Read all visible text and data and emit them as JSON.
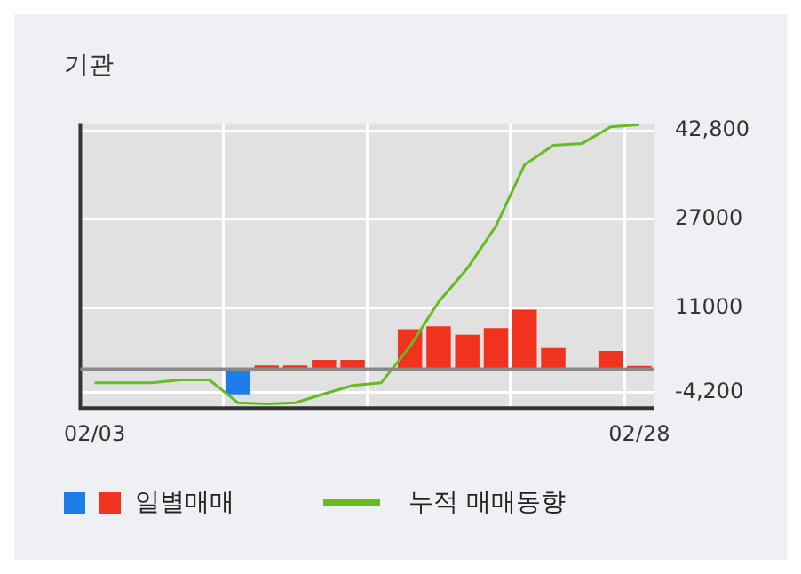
{
  "chart_data": {
    "type": "bar",
    "title": "기관",
    "categories": [
      "02/03",
      null,
      null,
      null,
      null,
      null,
      null,
      null,
      null,
      null,
      null,
      null,
      null,
      null,
      null,
      null,
      null,
      null,
      null,
      "02/28"
    ],
    "series": [
      {
        "name": "일별매매",
        "colors": [
          "#f0321e",
          "#f0321e",
          "#f0321e",
          "#f0321e",
          "#f0321e",
          "#1e7ee8",
          "#f0321e",
          "#f0321e",
          "#f0321e",
          "#f0321e",
          "#f0321e",
          "#f0321e",
          "#f0321e",
          "#f0321e",
          "#f0321e",
          "#f0321e",
          "#f0321e",
          "#f0321e",
          "#f0321e",
          "#f0321e"
        ],
        "values": [
          0,
          0,
          0,
          0,
          0,
          -4500,
          700,
          700,
          1700,
          1700,
          0,
          7200,
          7700,
          6200,
          7400,
          10700,
          3800,
          0,
          3300,
          600
        ]
      },
      {
        "name": "누적 매매동향",
        "type": "line",
        "color": "#66bb22",
        "values": [
          -2400,
          -2400,
          -2400,
          -1900,
          -1900,
          -6000,
          -6200,
          -6000,
          -4400,
          -2900,
          -2400,
          4100,
          12100,
          18100,
          25700,
          36700,
          40200,
          40500,
          43500,
          43900
        ]
      }
    ],
    "ylim": [
      -6950,
      44200
    ],
    "yticks": [
      {
        "value": 42800,
        "label": "42,800"
      },
      27000,
      11000,
      {
        "value": -4200,
        "label": "-4,200"
      }
    ],
    "ref_lines": [
      {
        "axis": "y",
        "value": 0,
        "color": "#888888"
      }
    ],
    "grid": true,
    "legend": "bottom"
  }
}
